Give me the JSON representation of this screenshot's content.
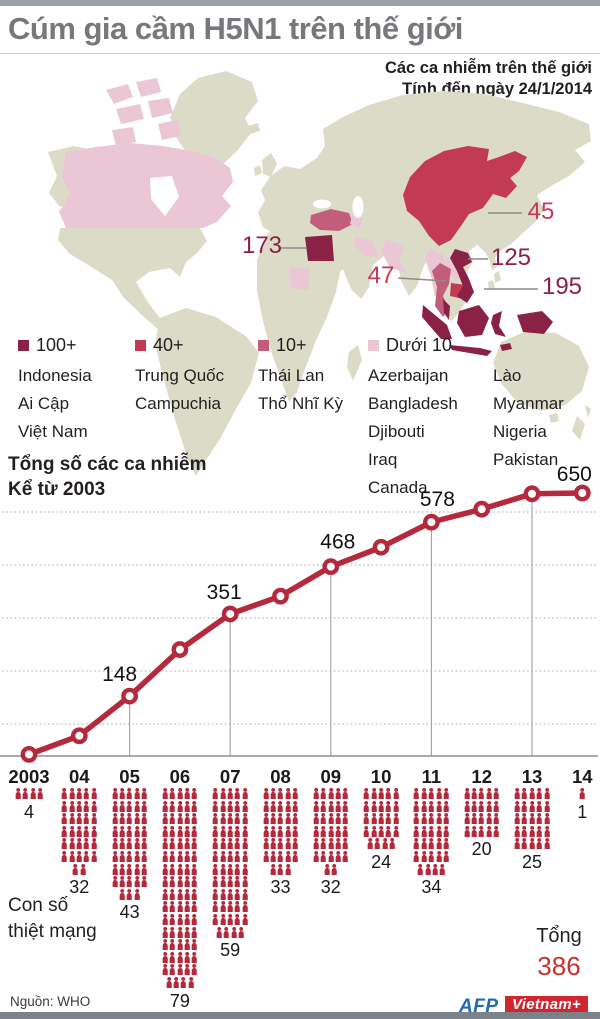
{
  "colors": {
    "band_100plus": "#8a2245",
    "band_40plus": "#c23a54",
    "band_10plus": "#c25e7c",
    "band_under10": "#ebc7d5",
    "land": "#dcdbc8",
    "line": "#b5293c",
    "total_red": "#c53231",
    "title_gray": "#77787b",
    "afp_blue": "#2268b2",
    "vnplus_red": "#cf2730"
  },
  "header": {
    "title": "Cúm gia cầm H5N1 trên thế giới",
    "subtitle1": "Các ca nhiễm trên thế giới",
    "subtitle2": "Tính đến ngày 24/1/2014"
  },
  "map": {
    "callouts": [
      {
        "value": "173",
        "country": "Ai Cập",
        "tone": "dark"
      },
      {
        "value": "45",
        "country": "Trung Quốc",
        "tone": "mid"
      },
      {
        "value": "125",
        "country": "Việt Nam",
        "tone": "dark"
      },
      {
        "value": "47",
        "country": "Campuchia",
        "tone": "mid"
      },
      {
        "value": "195",
        "country": "Indonesia",
        "tone": "dark"
      }
    ]
  },
  "legend": {
    "groups": [
      {
        "label": "100+",
        "band": "band_100plus",
        "countries": [
          "Indonesia",
          "Ai Cập",
          "Việt Nam"
        ]
      },
      {
        "label": "40+",
        "band": "band_40plus",
        "countries": [
          "Trung Quốc",
          "Campuchia"
        ]
      },
      {
        "label": "10+",
        "band": "band_10plus",
        "countries": [
          "Thái Lan",
          "Thổ Nhĩ Kỳ"
        ]
      },
      {
        "label": "Dưới 10",
        "band": "band_under10",
        "countries": [
          "Azerbaijan",
          "Bangladesh",
          "Djibouti",
          "Iraq",
          "Canada"
        ],
        "countries_extra": [
          "Lào",
          "Myanmar",
          "Nigeria",
          "Pakistan"
        ]
      }
    ]
  },
  "chart_data": [
    {
      "type": "line",
      "title": "Tổng số các ca nhiễm",
      "subtitle": "Kể từ 2003",
      "x": [
        "2003",
        "04",
        "05",
        "06",
        "07",
        "08",
        "09",
        "10",
        "11",
        "12",
        "13",
        "14"
      ],
      "values": [
        4,
        50,
        148,
        263,
        351,
        395,
        468,
        516,
        578,
        610,
        648,
        650
      ],
      "labeled_points": [
        {
          "x": "05",
          "value": 148
        },
        {
          "x": "07",
          "value": 351
        },
        {
          "x": "09",
          "value": 468
        },
        {
          "x": "11",
          "value": 578
        },
        {
          "x": "14",
          "value": 650
        }
      ],
      "droplines_at": [
        "05",
        "07",
        "09",
        "11",
        "13"
      ],
      "ylim": [
        0,
        680
      ],
      "grid": "dotted-horizontal",
      "line_color": "#b5293c"
    },
    {
      "type": "pictogram",
      "title": "Con số thiệt mạng",
      "categories": [
        "2003",
        "04",
        "05",
        "06",
        "07",
        "08",
        "09",
        "10",
        "11",
        "12",
        "13",
        "14"
      ],
      "values": [
        4,
        32,
        43,
        79,
        59,
        33,
        32,
        24,
        34,
        20,
        25,
        1
      ],
      "unit": "1 người = 1 icon",
      "total_label": "Tổng",
      "total": "386"
    }
  ],
  "deaths_label": {
    "line1": "Con số",
    "line2": "thiệt mạng"
  },
  "footer": {
    "source": "Nguồn: WHO",
    "afp": "AFP",
    "vnplus": "Vietnam+"
  }
}
